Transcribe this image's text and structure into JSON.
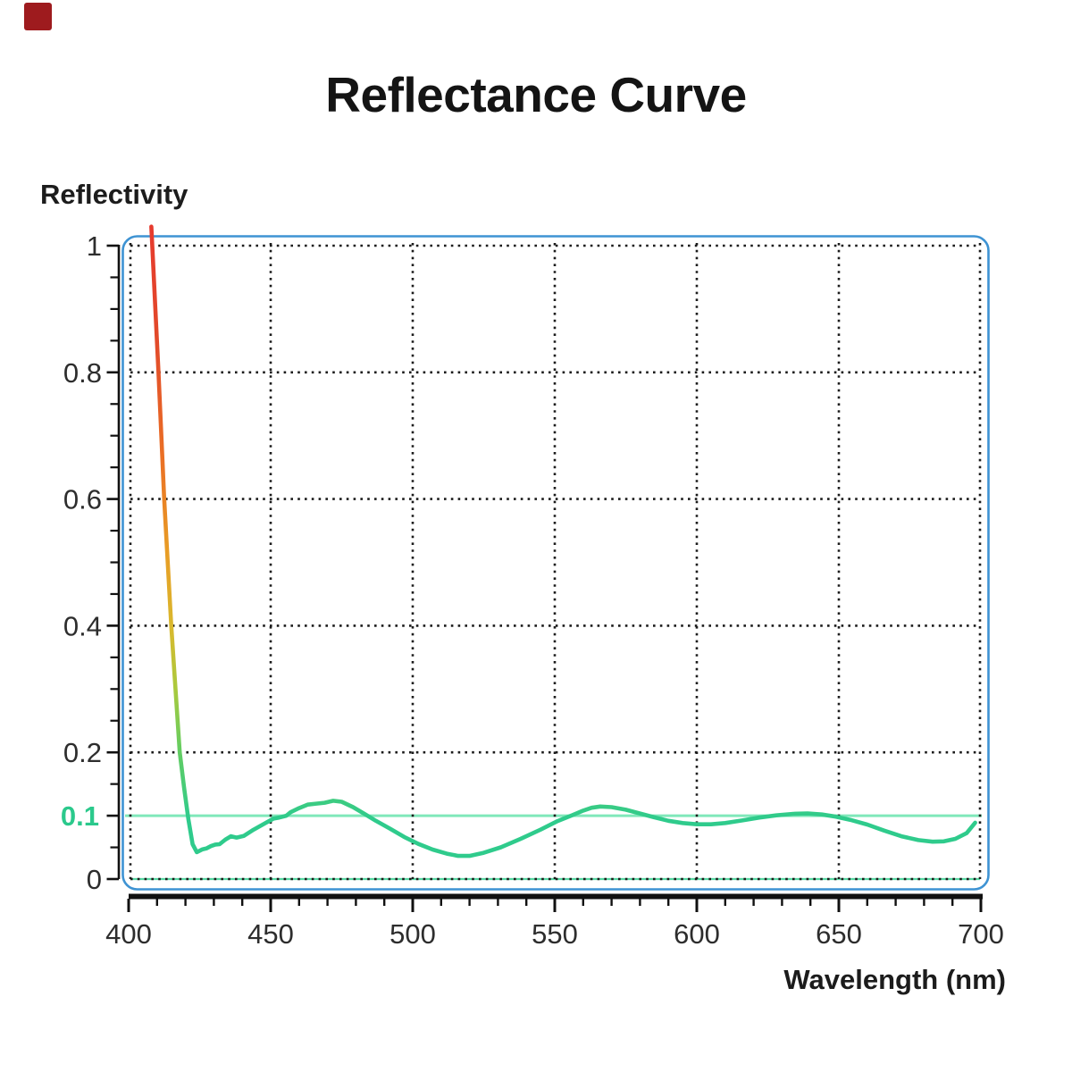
{
  "brand": {
    "color": "#9e1b1e"
  },
  "title": "Reflectance Curve",
  "y_axis": {
    "label": "Reflectivity",
    "tick_labels": [
      "1",
      "0.8",
      "0.6",
      "0.4",
      "0.2",
      "0"
    ],
    "tick_values": [
      1,
      0.8,
      0.6,
      0.4,
      0.2,
      0
    ],
    "minor_step": 0.05,
    "highlight": {
      "label": "0.1",
      "value": 0.1,
      "color": "#2bc98c"
    }
  },
  "x_axis": {
    "label": "Wavelength (nm)",
    "tick_values": [
      400,
      450,
      500,
      550,
      600,
      650,
      700
    ],
    "minor_step": 10
  },
  "chart_data": {
    "type": "line",
    "title": "Reflectance Curve",
    "xlabel": "Wavelength (nm)",
    "ylabel": "Reflectivity",
    "xlim": [
      400,
      700
    ],
    "ylim": [
      0,
      1
    ],
    "x_ticks": [
      400,
      450,
      500,
      550,
      600,
      650,
      700
    ],
    "y_ticks": [
      1,
      0.8,
      0.6,
      0.4,
      0.2,
      0
    ],
    "grid": "dotted",
    "grid_color": "#1b1b1b",
    "frame_color": "#3e93d3",
    "axis_color": "#111111",
    "legend": "none",
    "reference_lines": [
      {
        "axis": "y",
        "value": 0.1,
        "label": "0.1",
        "label_color": "#2bc98c",
        "line_color": "#80e8ba"
      },
      {
        "axis": "y",
        "value": 0.0,
        "label": "",
        "label_color": "",
        "line_color": "#58d8a3"
      }
    ],
    "series": [
      {
        "name": "reflectance",
        "color": "#2fcb8c",
        "gradient": [
          {
            "offset": 0.0,
            "color": "#e63a2e"
          },
          {
            "offset": 0.2,
            "color": "#e24a2a"
          },
          {
            "offset": 0.4,
            "color": "#ea7125"
          },
          {
            "offset": 0.55,
            "color": "#e89c25"
          },
          {
            "offset": 0.68,
            "color": "#d9b92e"
          },
          {
            "offset": 0.78,
            "color": "#abc93c"
          },
          {
            "offset": 0.88,
            "color": "#67cd5f"
          },
          {
            "offset": 1.0,
            "color": "#2fcb8c"
          }
        ],
        "points": [
          [
            408,
            1.03
          ],
          [
            410.5,
            0.8
          ],
          [
            412.5,
            0.6
          ],
          [
            415,
            0.4
          ],
          [
            418,
            0.2
          ],
          [
            419.5,
            0.145
          ],
          [
            421,
            0.095
          ],
          [
            422.5,
            0.055
          ],
          [
            424,
            0.0425
          ],
          [
            426,
            0.047
          ],
          [
            427.5,
            0.0485
          ],
          [
            429,
            0.052
          ],
          [
            430.5,
            0.0545
          ],
          [
            432,
            0.055
          ],
          [
            434,
            0.062
          ],
          [
            436,
            0.0675
          ],
          [
            438,
            0.0655
          ],
          [
            440.5,
            0.068
          ],
          [
            444,
            0.078
          ],
          [
            448,
            0.088
          ],
          [
            451,
            0.0955
          ],
          [
            453,
            0.097
          ],
          [
            455.5,
            0.1
          ],
          [
            457,
            0.1055
          ],
          [
            460,
            0.112
          ],
          [
            463,
            0.1175
          ],
          [
            466,
            0.119
          ],
          [
            469,
            0.1205
          ],
          [
            472,
            0.1235
          ],
          [
            475,
            0.122
          ],
          [
            479,
            0.1135
          ],
          [
            483,
            0.103
          ],
          [
            487,
            0.092
          ],
          [
            492,
            0.0795
          ],
          [
            497,
            0.0665
          ],
          [
            502,
            0.0555
          ],
          [
            507,
            0.0465
          ],
          [
            512,
            0.04
          ],
          [
            516,
            0.0365
          ],
          [
            520,
            0.0365
          ],
          [
            525,
            0.0415
          ],
          [
            531,
            0.05
          ],
          [
            538,
            0.0635
          ],
          [
            545,
            0.078
          ],
          [
            551,
            0.0915
          ],
          [
            556,
            0.1005
          ],
          [
            560,
            0.108
          ],
          [
            563,
            0.1125
          ],
          [
            566,
            0.1145
          ],
          [
            570,
            0.1135
          ],
          [
            575,
            0.1095
          ],
          [
            580,
            0.1035
          ],
          [
            585,
            0.0975
          ],
          [
            590,
            0.092
          ],
          [
            595,
            0.0885
          ],
          [
            600,
            0.0865
          ],
          [
            605,
            0.0865
          ],
          [
            610,
            0.0885
          ],
          [
            616,
            0.0925
          ],
          [
            622,
            0.097
          ],
          [
            628,
            0.1005
          ],
          [
            634,
            0.103
          ],
          [
            639,
            0.1035
          ],
          [
            644,
            0.102
          ],
          [
            649,
            0.0985
          ],
          [
            654,
            0.0935
          ],
          [
            660,
            0.086
          ],
          [
            666,
            0.0765
          ],
          [
            672,
            0.0675
          ],
          [
            678,
            0.0615
          ],
          [
            683,
            0.059
          ],
          [
            687,
            0.0595
          ],
          [
            691,
            0.0635
          ],
          [
            695,
            0.0725
          ],
          [
            698,
            0.089
          ]
        ]
      }
    ]
  }
}
